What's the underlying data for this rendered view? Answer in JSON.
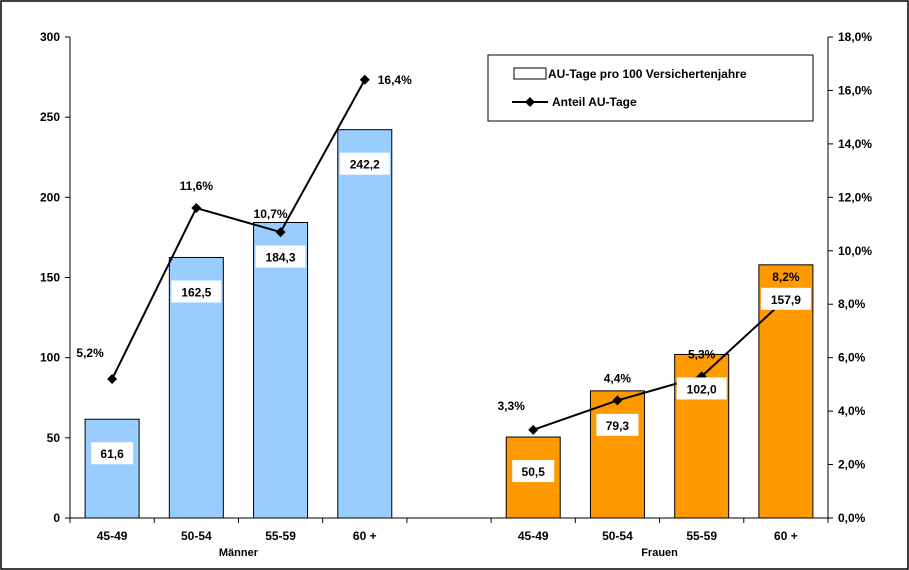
{
  "chart_data": {
    "type": "bar",
    "groups": [
      {
        "name": "Männer",
        "categories": [
          "45-49",
          "50-54",
          "55-59",
          "60 +"
        ]
      },
      {
        "name": "Frauen",
        "categories": [
          "45-49",
          "50-54",
          "55-59",
          "60 +"
        ]
      }
    ],
    "series": [
      {
        "name": "AU-Tage pro 100 Versichertenjahre",
        "type": "bar",
        "axis": "left",
        "values": [
          61.6,
          162.5,
          184.3,
          242.2,
          50.5,
          79.3,
          102.0,
          157.9
        ],
        "labels": [
          "61,6",
          "162,5",
          "184,3",
          "242,2",
          "50,5",
          "79,3",
          "102,0",
          "157,9"
        ],
        "colors": [
          "#99ccff",
          "#99ccff",
          "#99ccff",
          "#99ccff",
          "#ff9900",
          "#ff9900",
          "#ff9900",
          "#ff9900"
        ]
      },
      {
        "name": "Anteil AU-Tage",
        "type": "line",
        "axis": "right",
        "values": [
          5.2,
          11.6,
          10.7,
          16.4,
          3.3,
          4.4,
          5.3,
          8.2
        ],
        "labels": [
          "5,2%",
          "11,6%",
          "10,7%",
          "16,4%",
          "3,3%",
          "4,4%",
          "5,3%",
          "8,2%"
        ],
        "color": "#000000"
      }
    ],
    "y_left": {
      "min": 0,
      "max": 300,
      "ticks": [
        0,
        50,
        100,
        150,
        200,
        250,
        300
      ]
    },
    "y_right": {
      "min": 0,
      "max": 18,
      "ticks": [
        "0,0%",
        "2,0%",
        "4,0%",
        "6,0%",
        "8,0%",
        "10,0%",
        "12,0%",
        "14,0%",
        "16,0%",
        "18,0%"
      ]
    },
    "grid": false,
    "legend_position": "top-right"
  }
}
